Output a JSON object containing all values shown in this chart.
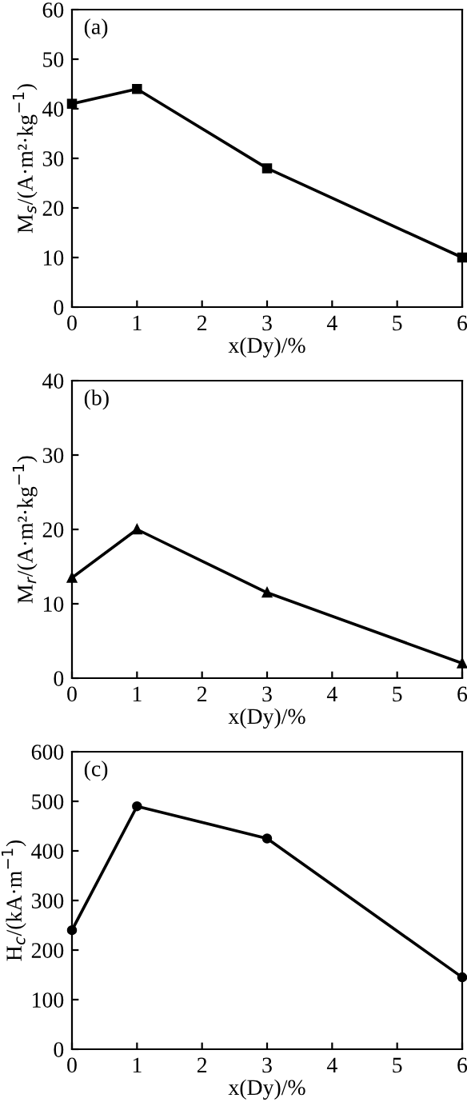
{
  "chart_data": [
    {
      "type": "line",
      "x": [
        0,
        1,
        3,
        6
      ],
      "series": [
        {
          "color": "#000000",
          "values": [
            41,
            44,
            28,
            10
          ]
        }
      ],
      "marker": "square",
      "xlim": [
        0,
        6
      ],
      "xticks": [
        0,
        1,
        2,
        3,
        4,
        5,
        6
      ],
      "ylim": [
        0,
        60
      ],
      "yticks": [
        0,
        10,
        20,
        30,
        40,
        50,
        60
      ],
      "xlabel": "x(Dy)/%",
      "ylabel": "M$_{s}$/(A·m²·kg$^{−1}$)",
      "annotations": [
        "(a)"
      ],
      "grid": false,
      "legend": false
    },
    {
      "type": "line",
      "x": [
        0,
        1,
        3,
        6
      ],
      "series": [
        {
          "color": "#000000",
          "values": [
            13.5,
            20,
            11.5,
            2
          ]
        }
      ],
      "marker": "triangle",
      "xlim": [
        0,
        6
      ],
      "xticks": [
        0,
        1,
        2,
        3,
        4,
        5,
        6
      ],
      "ylim": [
        0,
        40
      ],
      "yticks": [
        0,
        10,
        20,
        30,
        40
      ],
      "xlabel": "x(Dy)/%",
      "ylabel": "M$_{r}$/(A·m²·kg$^{−1}$)",
      "annotations": [
        "(b)"
      ],
      "grid": false,
      "legend": false
    },
    {
      "type": "line",
      "x": [
        0,
        1,
        3,
        6
      ],
      "series": [
        {
          "color": "#000000",
          "values": [
            240,
            490,
            425,
            145
          ]
        }
      ],
      "marker": "circle",
      "xlim": [
        0,
        6
      ],
      "xticks": [
        0,
        1,
        2,
        3,
        4,
        5,
        6
      ],
      "ylim": [
        0,
        600
      ],
      "yticks": [
        0,
        100,
        200,
        300,
        400,
        500,
        600
      ],
      "xlabel": "x(Dy)/%",
      "ylabel": "H$_{c}$/(kA·m$^{−1}$)",
      "annotations": [
        "(c)"
      ],
      "grid": false,
      "legend": false
    }
  ]
}
